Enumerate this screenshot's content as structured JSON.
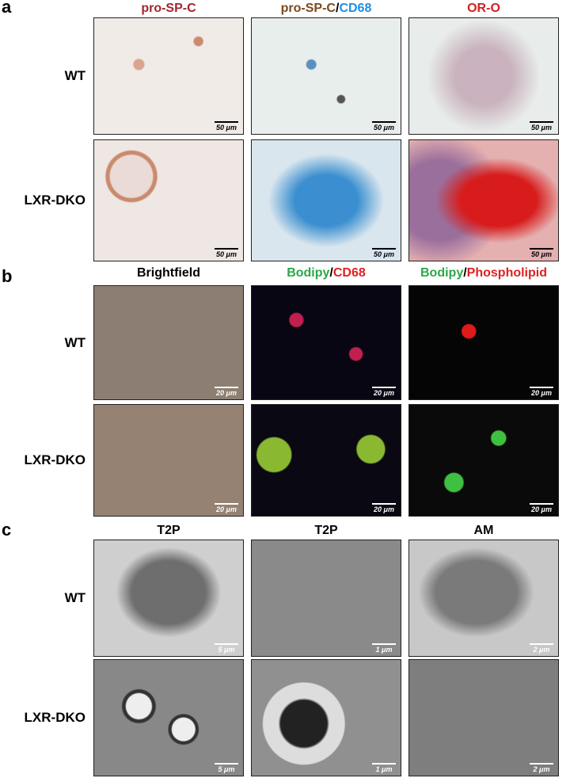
{
  "panels": [
    {
      "label": "a",
      "columns": [
        {
          "parts": [
            {
              "text": "pro-SP-C",
              "color": "#a3262f"
            }
          ]
        },
        {
          "parts": [
            {
              "text": "pro-SP-C",
              "color": "#7a4a1e"
            },
            {
              "text": "/",
              "color": "#000000"
            },
            {
              "text": "CD68",
              "color": "#1f8fe0"
            }
          ]
        },
        {
          "parts": [
            {
              "text": "OR-O",
              "color": "#d42020"
            }
          ]
        }
      ],
      "rows": [
        {
          "label": "WT",
          "scale_bars": [
            "50 μm",
            "50 μm",
            "50 μm"
          ]
        },
        {
          "label": "LXR-DKO",
          "scale_bars": [
            "50 μm",
            "50 μm",
            "50 μm"
          ]
        }
      ]
    },
    {
      "label": "b",
      "columns": [
        {
          "parts": [
            {
              "text": "Brightfield",
              "color": "#000000"
            }
          ]
        },
        {
          "parts": [
            {
              "text": "Bodipy",
              "color": "#2aa84a"
            },
            {
              "text": "/",
              "color": "#000000"
            },
            {
              "text": "CD68",
              "color": "#e02020"
            }
          ]
        },
        {
          "parts": [
            {
              "text": "Bodipy",
              "color": "#2aa84a"
            },
            {
              "text": "/",
              "color": "#000000"
            },
            {
              "text": "Phospholipid",
              "color": "#e02020"
            }
          ]
        }
      ],
      "rows": [
        {
          "label": "WT",
          "scale_bars": [
            "20 μm",
            "20 μm",
            "20 μm"
          ]
        },
        {
          "label": "LXR-DKO",
          "scale_bars": [
            "20 μm",
            "20 μm",
            "20 μm"
          ]
        }
      ]
    },
    {
      "label": "c",
      "columns": [
        {
          "parts": [
            {
              "text": "T2P",
              "color": "#000000"
            }
          ]
        },
        {
          "parts": [
            {
              "text": "T2P",
              "color": "#000000"
            }
          ]
        },
        {
          "parts": [
            {
              "text": "AM",
              "color": "#000000"
            }
          ]
        }
      ],
      "rows": [
        {
          "label": "WT",
          "scale_bars": [
            "5 μm",
            "1 μm",
            "2 μm"
          ]
        },
        {
          "label": "LXR-DKO",
          "scale_bars": [
            "5 μm",
            "1 μm",
            "2 μm"
          ]
        }
      ]
    }
  ]
}
